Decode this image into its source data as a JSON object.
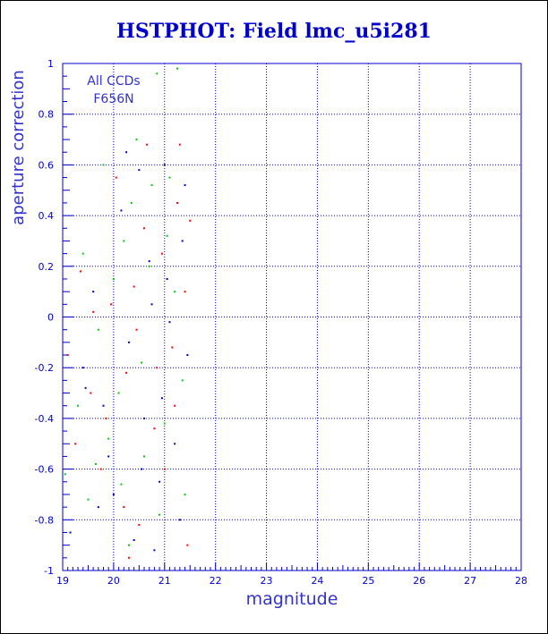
{
  "chart_data": {
    "type": "scatter",
    "title": "HSTPHOT: Field lmc_u5i281",
    "xlabel": "magnitude",
    "ylabel": "aperture correction",
    "xlim": [
      19,
      28
    ],
    "ylim": [
      -1,
      1
    ],
    "x_ticks": [
      "19",
      "20",
      "21",
      "22",
      "23",
      "24",
      "25",
      "26",
      "27",
      "28"
    ],
    "y_ticks": [
      "-1",
      "-0.8",
      "-0.6",
      "-0.4",
      "-0.2",
      "0",
      "0.2",
      "0.4",
      "0.6",
      "0.8",
      "1"
    ],
    "grid": true,
    "annotations": [
      "All CCDs",
      "F656N"
    ],
    "series": [
      {
        "color": "#00cc00",
        "points": [
          [
            19.05,
            -0.62
          ],
          [
            19.3,
            -0.35
          ],
          [
            19.5,
            -0.72
          ],
          [
            19.7,
            -0.05
          ],
          [
            19.9,
            -0.48
          ],
          [
            20.0,
            0.15
          ],
          [
            20.2,
            0.3
          ],
          [
            20.3,
            -0.9
          ],
          [
            20.45,
            0.7
          ],
          [
            20.55,
            -0.18
          ],
          [
            20.7,
            0.2
          ],
          [
            20.85,
            0.96
          ],
          [
            21.0,
            -0.42
          ],
          [
            21.1,
            0.55
          ],
          [
            21.25,
            0.98
          ],
          [
            21.4,
            -0.7
          ],
          [
            20.1,
            -0.3
          ],
          [
            19.8,
            0.6
          ],
          [
            20.6,
            -0.55
          ],
          [
            21.2,
            0.1
          ],
          [
            19.4,
            0.25
          ],
          [
            20.9,
            -0.78
          ],
          [
            20.35,
            0.45
          ],
          [
            21.35,
            -0.25
          ],
          [
            19.65,
            -0.58
          ],
          [
            20.15,
            -0.66
          ],
          [
            20.75,
            0.52
          ],
          [
            21.05,
            0.32
          ]
        ]
      },
      {
        "color": "#ff0000",
        "points": [
          [
            19.1,
            -0.15
          ],
          [
            19.35,
            0.18
          ],
          [
            19.55,
            -0.3
          ],
          [
            19.75,
            -0.6
          ],
          [
            19.95,
            0.05
          ],
          [
            20.05,
            0.55
          ],
          [
            20.25,
            -0.22
          ],
          [
            20.4,
            0.12
          ],
          [
            20.5,
            -0.82
          ],
          [
            20.65,
            0.68
          ],
          [
            20.8,
            -0.44
          ],
          [
            20.95,
            0.25
          ],
          [
            21.15,
            -0.12
          ],
          [
            21.3,
            0.68
          ],
          [
            21.45,
            -0.9
          ],
          [
            21.5,
            0.38
          ],
          [
            19.6,
            0.02
          ],
          [
            20.2,
            -0.75
          ],
          [
            21.0,
            -0.6
          ],
          [
            20.6,
            0.35
          ],
          [
            21.2,
            -0.35
          ],
          [
            19.85,
            -0.4
          ],
          [
            20.45,
            -0.05
          ],
          [
            21.4,
            0.1
          ],
          [
            20.3,
            -0.95
          ],
          [
            19.25,
            -0.5
          ],
          [
            20.85,
            -0.2
          ],
          [
            21.25,
            0.45
          ]
        ]
      },
      {
        "color": "#0000cc",
        "points": [
          [
            19.15,
            -0.85
          ],
          [
            19.4,
            -0.2
          ],
          [
            19.6,
            0.1
          ],
          [
            19.8,
            -0.35
          ],
          [
            20.0,
            -0.7
          ],
          [
            20.15,
            0.42
          ],
          [
            20.3,
            -0.1
          ],
          [
            20.5,
            0.58
          ],
          [
            20.6,
            -0.4
          ],
          [
            20.75,
            0.05
          ],
          [
            20.9,
            -0.65
          ],
          [
            21.0,
            0.6
          ],
          [
            21.2,
            -0.5
          ],
          [
            21.35,
            0.3
          ],
          [
            21.45,
            -0.15
          ],
          [
            19.9,
            -0.55
          ],
          [
            20.4,
            -0.88
          ],
          [
            20.7,
            0.22
          ],
          [
            21.1,
            -0.02
          ],
          [
            21.3,
            -0.8
          ],
          [
            19.45,
            -0.28
          ],
          [
            20.25,
            0.65
          ],
          [
            20.95,
            -0.32
          ],
          [
            21.4,
            0.52
          ],
          [
            20.55,
            -0.6
          ],
          [
            19.7,
            -0.75
          ],
          [
            21.05,
            0.15
          ],
          [
            20.8,
            -0.92
          ]
        ]
      }
    ]
  }
}
